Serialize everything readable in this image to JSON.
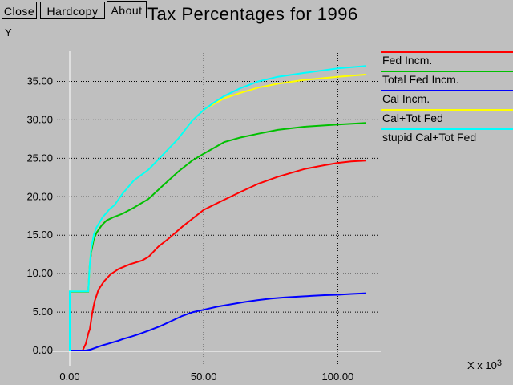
{
  "toolbar": {
    "buttons": [
      {
        "label": "Close"
      },
      {
        "label": "Hardcopy"
      },
      {
        "label": "About"
      }
    ]
  },
  "header": {
    "title": "Tax Percentages for 1996"
  },
  "colors": {
    "background": "#bfbfbf",
    "axis_lines": "#ffffff",
    "gridlines": "#000000",
    "text": "#000000"
  },
  "chart_data": {
    "type": "line",
    "title": "Tax Percentages for 1996",
    "ylabel": "Y",
    "xlabel": {
      "prefix": "X x 10",
      "exponent": "3"
    },
    "grid": "dotted",
    "legend_position": "right",
    "xlim": [
      0,
      115.4
    ],
    "ylim": [
      0,
      39
    ],
    "x_ticks": [
      {
        "value": 0,
        "label": "0.00"
      },
      {
        "value": 50,
        "label": "50.00"
      },
      {
        "value": 100,
        "label": "100.00"
      }
    ],
    "y_ticks": [
      {
        "value": 0,
        "label": "0.00"
      },
      {
        "value": 5,
        "label": "5.00"
      },
      {
        "value": 10,
        "label": "10.00"
      },
      {
        "value": 15,
        "label": "15.00"
      },
      {
        "value": 20,
        "label": "20.00"
      },
      {
        "value": 25,
        "label": "25.00"
      },
      {
        "value": 30,
        "label": "30.00"
      },
      {
        "value": 35,
        "label": "35.00"
      }
    ],
    "series": [
      {
        "name": "Fed Incm.",
        "color": "#ff0000",
        "points": [
          [
            0,
            0
          ],
          [
            4.8,
            0
          ],
          [
            6,
            0.9
          ],
          [
            7,
            2.3
          ],
          [
            7.5,
            2.8
          ],
          [
            8.4,
            4.9
          ],
          [
            9.3,
            6.4
          ],
          [
            10.7,
            7.9
          ],
          [
            12.8,
            9.0
          ],
          [
            15.2,
            9.9
          ],
          [
            18.2,
            10.6
          ],
          [
            22.4,
            11.2
          ],
          [
            27,
            11.7
          ],
          [
            29.5,
            12.2
          ],
          [
            33,
            13.5
          ],
          [
            36.7,
            14.5
          ],
          [
            42,
            16.1
          ],
          [
            46,
            17.2
          ],
          [
            50,
            18.3
          ],
          [
            57.6,
            19.6
          ],
          [
            63.6,
            20.6
          ],
          [
            70.4,
            21.7
          ],
          [
            77.6,
            22.6
          ],
          [
            87.5,
            23.6
          ],
          [
            95,
            24.1
          ],
          [
            100,
            24.4
          ],
          [
            105,
            24.6
          ],
          [
            110.5,
            24.7
          ]
        ]
      },
      {
        "name": "Total Fed Incm.",
        "color": "#00c000",
        "points": [
          [
            0,
            0
          ],
          [
            0,
            7.65
          ],
          [
            6.9,
            7.65
          ],
          [
            7.4,
            10.8
          ],
          [
            8,
            12.8
          ],
          [
            9,
            14.5
          ],
          [
            10,
            15.3
          ],
          [
            12,
            16.3
          ],
          [
            13.7,
            16.9
          ],
          [
            16,
            17.3
          ],
          [
            19.7,
            17.8
          ],
          [
            24,
            18.6
          ],
          [
            29.3,
            19.7
          ],
          [
            34.6,
            21.4
          ],
          [
            40.6,
            23.3
          ],
          [
            45.7,
            24.7
          ],
          [
            50,
            25.6
          ],
          [
            57.6,
            27.1
          ],
          [
            63.6,
            27.7
          ],
          [
            70.4,
            28.2
          ],
          [
            77.6,
            28.7
          ],
          [
            87.5,
            29.1
          ],
          [
            100,
            29.4
          ],
          [
            110.5,
            29.6
          ]
        ]
      },
      {
        "name": "Cal Incm.",
        "color": "#0000ff",
        "points": [
          [
            0,
            0
          ],
          [
            6,
            0
          ],
          [
            8,
            0.15
          ],
          [
            10,
            0.4
          ],
          [
            12,
            0.65
          ],
          [
            14,
            0.85
          ],
          [
            16,
            1.05
          ],
          [
            18,
            1.25
          ],
          [
            20,
            1.5
          ],
          [
            23,
            1.8
          ],
          [
            26,
            2.15
          ],
          [
            30,
            2.65
          ],
          [
            34,
            3.2
          ],
          [
            38,
            3.85
          ],
          [
            42,
            4.5
          ],
          [
            46,
            5.0
          ],
          [
            50,
            5.3
          ],
          [
            55,
            5.7
          ],
          [
            60,
            6.0
          ],
          [
            65,
            6.3
          ],
          [
            70,
            6.55
          ],
          [
            75,
            6.75
          ],
          [
            80,
            6.9
          ],
          [
            85,
            7.0
          ],
          [
            90,
            7.1
          ],
          [
            95,
            7.2
          ],
          [
            100,
            7.25
          ],
          [
            105,
            7.35
          ],
          [
            110.5,
            7.45
          ]
        ]
      },
      {
        "name": "Cal+Tot Fed",
        "color": "#ffff00",
        "points": [
          [
            0,
            0
          ],
          [
            0,
            7.7
          ],
          [
            6.9,
            7.7
          ],
          [
            7.5,
            11.4
          ],
          [
            8.1,
            13.5
          ],
          [
            9,
            15.1
          ],
          [
            10,
            16.0
          ],
          [
            12.2,
            17.3
          ],
          [
            14.9,
            18.4
          ],
          [
            16.7,
            18.9
          ],
          [
            19.7,
            20.4
          ],
          [
            23.9,
            22.1
          ],
          [
            29.3,
            23.5
          ],
          [
            34.6,
            25.4
          ],
          [
            40.6,
            27.6
          ],
          [
            45.7,
            29.9
          ],
          [
            50,
            31.3
          ],
          [
            54,
            32.1
          ],
          [
            57.6,
            32.8
          ],
          [
            63.6,
            33.5
          ],
          [
            70.4,
            34.2
          ],
          [
            77.6,
            34.7
          ],
          [
            87.5,
            35.2
          ],
          [
            100,
            35.6
          ],
          [
            110.5,
            35.9
          ]
        ]
      },
      {
        "name": "stupid Cal+Tot Fed",
        "color": "#00ffff",
        "points": [
          [
            0,
            0
          ],
          [
            0,
            7.7
          ],
          [
            6.9,
            7.7
          ],
          [
            7.5,
            11.4
          ],
          [
            8.1,
            13.5
          ],
          [
            9,
            15.1
          ],
          [
            10,
            16.0
          ],
          [
            12.2,
            17.3
          ],
          [
            14.9,
            18.4
          ],
          [
            16.7,
            18.9
          ],
          [
            19.7,
            20.4
          ],
          [
            23.9,
            22.1
          ],
          [
            29.3,
            23.5
          ],
          [
            34.6,
            25.4
          ],
          [
            40.6,
            27.6
          ],
          [
            45.7,
            29.9
          ],
          [
            50,
            31.3
          ],
          [
            54,
            32.3
          ],
          [
            57.6,
            33.1
          ],
          [
            63.6,
            34.1
          ],
          [
            70.4,
            35.0
          ],
          [
            77.6,
            35.6
          ],
          [
            87.5,
            36.1
          ],
          [
            100,
            36.7
          ],
          [
            110.5,
            37.0
          ]
        ]
      }
    ]
  }
}
